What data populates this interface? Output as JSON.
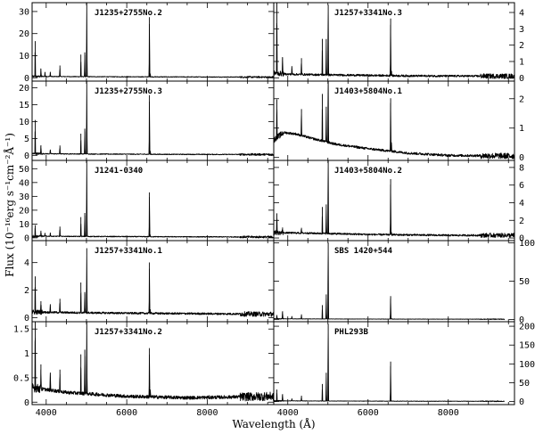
{
  "chart_data": {
    "type": "line",
    "xlabel": "Wavelength (Å)",
    "ylabel": "Flux (10⁻¹⁶erg s⁻¹cm⁻²Å⁻¹)",
    "xlim": [
      3650,
      9650
    ],
    "xticks": [
      4000,
      6000,
      8000
    ],
    "panels": [
      {
        "name": "J1235+2755No.2",
        "column": "left",
        "row": 0,
        "y_axis": "left",
        "ylim": [
          -1.5,
          34
        ],
        "yticks": [
          0,
          10,
          20,
          30
        ],
        "continuum": [
          [
            3650,
            0.6
          ],
          [
            5000,
            0.5
          ],
          [
            7000,
            0.4
          ],
          [
            9650,
            0.3
          ]
        ],
        "noise": 0.15,
        "lines": [
          [
            3727,
            16
          ],
          [
            3869,
            3.5
          ],
          [
            3970,
            2
          ],
          [
            4102,
            2
          ],
          [
            4340,
            5
          ],
          [
            4861,
            10
          ],
          [
            4959,
            11
          ],
          [
            5007,
            34
          ],
          [
            6563,
            27
          ],
          [
            6584,
            1.5
          ]
        ]
      },
      {
        "name": "J1235+2755No.3",
        "column": "left",
        "row": 1,
        "y_axis": "left",
        "ylim": [
          -1.5,
          22
        ],
        "yticks": [
          0,
          5,
          10,
          15,
          20
        ],
        "continuum": [
          [
            3650,
            0.5
          ],
          [
            5000,
            0.4
          ],
          [
            7000,
            0.3
          ],
          [
            9650,
            0.25
          ]
        ],
        "noise": 0.12,
        "lines": [
          [
            3727,
            10
          ],
          [
            3869,
            2.5
          ],
          [
            4102,
            1.2
          ],
          [
            4340,
            2.5
          ],
          [
            4861,
            6
          ],
          [
            4959,
            7.5
          ],
          [
            5007,
            22
          ],
          [
            6563,
            17.5
          ],
          [
            6584,
            1
          ]
        ]
      },
      {
        "name": "J1241-0340",
        "column": "left",
        "row": 2,
        "y_axis": "left",
        "ylim": [
          -2,
          56
        ],
        "yticks": [
          0,
          10,
          20,
          30,
          40,
          50
        ],
        "continuum": [
          [
            3650,
            1.2
          ],
          [
            5000,
            1.0
          ],
          [
            7000,
            0.8
          ],
          [
            9650,
            0.6
          ]
        ],
        "noise": 0.3,
        "lines": [
          [
            3727,
            8
          ],
          [
            3869,
            4
          ],
          [
            3970,
            2
          ],
          [
            4102,
            2.5
          ],
          [
            4340,
            7
          ],
          [
            4861,
            14
          ],
          [
            4959,
            17
          ],
          [
            5007,
            56
          ],
          [
            6563,
            32
          ],
          [
            6584,
            1.5
          ]
        ]
      },
      {
        "name": "J1257+3341No.1",
        "column": "left",
        "row": 3,
        "y_axis": "left",
        "ylim": [
          -0.3,
          5.6
        ],
        "yticks": [
          0,
          2,
          4
        ],
        "continuum": [
          [
            3650,
            0.4
          ],
          [
            5000,
            0.35
          ],
          [
            7000,
            0.3
          ],
          [
            9650,
            0.25
          ]
        ],
        "noise": 0.07,
        "lines": [
          [
            3727,
            2.6
          ],
          [
            3869,
            0.8
          ],
          [
            4102,
            0.5
          ],
          [
            4340,
            1.0
          ],
          [
            4861,
            2.2
          ],
          [
            4959,
            1.5
          ],
          [
            5007,
            4.7
          ],
          [
            6563,
            3.7
          ],
          [
            6584,
            0.3
          ]
        ]
      },
      {
        "name": "J1257+3341No.2",
        "column": "left",
        "row": 4,
        "y_axis": "left",
        "ylim": [
          -0.05,
          1.65
        ],
        "yticks": [
          0,
          0.5,
          1,
          1.5
        ],
        "continuum": [
          [
            3650,
            0.3
          ],
          [
            4500,
            0.2
          ],
          [
            6000,
            0.12
          ],
          [
            7500,
            0.09
          ],
          [
            9650,
            0.12
          ]
        ],
        "noise": 0.035,
        "lines": [
          [
            3727,
            1.5
          ],
          [
            3869,
            0.5
          ],
          [
            4102,
            0.35
          ],
          [
            4340,
            0.45
          ],
          [
            4861,
            0.8
          ],
          [
            4959,
            0.9
          ],
          [
            5007,
            1.6
          ],
          [
            6563,
            1.0
          ],
          [
            6584,
            0.15
          ]
        ]
      },
      {
        "name": "J1257+3341No.3",
        "column": "right",
        "row": 0,
        "y_axis": "right",
        "ylim": [
          -0.2,
          4.6
        ],
        "yticks": [
          0,
          1,
          2,
          3,
          4
        ],
        "continuum": [
          [
            3650,
            0.3
          ],
          [
            4000,
            0.22
          ],
          [
            5000,
            0.18
          ],
          [
            7000,
            0.12
          ],
          [
            9650,
            0.1
          ]
        ],
        "noise": 0.06,
        "lines": [
          [
            3727,
            4.4
          ],
          [
            3869,
            1.0
          ],
          [
            4102,
            0.5
          ],
          [
            4340,
            1.0
          ],
          [
            4861,
            2.2
          ],
          [
            4959,
            2.2
          ],
          [
            5007,
            4.3
          ],
          [
            6563,
            3.5
          ],
          [
            6584,
            0.3
          ]
        ]
      },
      {
        "name": "J1403+5804No.1",
        "column": "right",
        "row": 1,
        "y_axis": "right",
        "ylim": [
          -0.1,
          2.6
        ],
        "yticks": [
          0,
          1,
          2
        ],
        "continuum": [
          [
            3650,
            0.6
          ],
          [
            3900,
            0.85
          ],
          [
            4200,
            0.8
          ],
          [
            4600,
            0.65
          ],
          [
            5200,
            0.45
          ],
          [
            6000,
            0.3
          ],
          [
            7000,
            0.15
          ],
          [
            8000,
            0.07
          ],
          [
            9650,
            0.05
          ]
        ],
        "noise": 0.04,
        "lines": [
          [
            3727,
            1.3
          ],
          [
            4340,
            0.9
          ],
          [
            4861,
            1.6
          ],
          [
            4959,
            1.2
          ],
          [
            5007,
            2.5
          ],
          [
            6563,
            1.8
          ],
          [
            6584,
            0.3
          ]
        ]
      },
      {
        "name": "J1403+5804No.2",
        "column": "right",
        "row": 2,
        "y_axis": "right",
        "ylim": [
          -0.3,
          8.8
        ],
        "yticks": [
          0,
          2,
          4,
          6,
          8
        ],
        "continuum": [
          [
            3650,
            0.6
          ],
          [
            4500,
            0.55
          ],
          [
            6000,
            0.4
          ],
          [
            8000,
            0.3
          ],
          [
            9650,
            0.3
          ]
        ],
        "noise": 0.1,
        "lines": [
          [
            3727,
            2.2
          ],
          [
            3869,
            0.6
          ],
          [
            4340,
            0.6
          ],
          [
            4861,
            3.0
          ],
          [
            4959,
            3.3
          ],
          [
            5007,
            8.5
          ],
          [
            6563,
            6.3
          ],
          [
            6584,
            0.3
          ]
        ]
      },
      {
        "name": "SBS 1420+544",
        "column": "right",
        "row": 3,
        "y_axis": "right",
        "ylim": [
          -3,
          103
        ],
        "yticks": [
          0,
          50,
          100
        ],
        "continuum": [
          [
            3650,
            0.8
          ],
          [
            5000,
            0.6
          ],
          [
            7000,
            0.4
          ],
          [
            9400,
            0.3
          ]
        ],
        "noise": 0.2,
        "xmax": 9400,
        "lines": [
          [
            3727,
            5
          ],
          [
            3869,
            10
          ],
          [
            4102,
            3
          ],
          [
            4340,
            6
          ],
          [
            4861,
            18
          ],
          [
            4959,
            32
          ],
          [
            5007,
            100
          ],
          [
            6563,
            30
          ],
          [
            6584,
            1
          ]
        ]
      },
      {
        "name": "PHL293B",
        "column": "right",
        "row": 4,
        "y_axis": "right",
        "ylim": [
          -8,
          212
        ],
        "yticks": [
          0,
          50,
          100,
          150,
          200
        ],
        "continuum": [
          [
            3650,
            2
          ],
          [
            5000,
            1.5
          ],
          [
            7000,
            1.0
          ],
          [
            9400,
            0.8
          ]
        ],
        "noise": 0.5,
        "xmax": 9400,
        "lines": [
          [
            3727,
            30
          ],
          [
            3869,
            18
          ],
          [
            4102,
            6
          ],
          [
            4340,
            14
          ],
          [
            4861,
            45
          ],
          [
            4959,
            75
          ],
          [
            5007,
            205
          ],
          [
            6563,
            105
          ],
          [
            6584,
            2
          ]
        ]
      }
    ]
  }
}
